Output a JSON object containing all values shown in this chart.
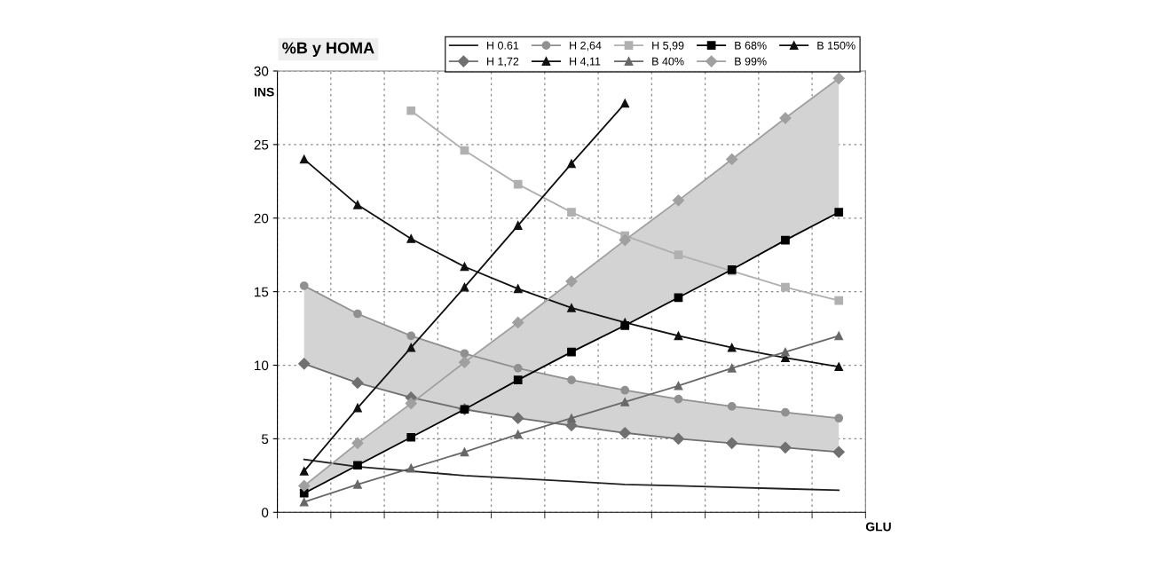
{
  "chart_data": {
    "type": "line",
    "title": "%B y HOMA",
    "ylabel": "INS",
    "xlabel": "GLU",
    "categories": [
      null,
      null,
      null,
      null,
      null,
      null,
      null,
      null,
      null,
      null,
      null
    ],
    "ylim": [
      0,
      30
    ],
    "yticks": [
      0,
      5,
      10,
      15,
      20,
      25,
      30
    ],
    "grid": true,
    "legend": "top right",
    "line_style": "solid",
    "series": [
      {
        "name": "H 0.61",
        "color": "#202020",
        "marker": "none",
        "values": [
          3.6,
          3.1,
          2.8,
          2.5,
          2.3,
          2.1,
          1.9,
          1.8,
          1.7,
          1.6,
          1.5
        ]
      },
      {
        "name": "H 1,72",
        "color": "#707070",
        "marker": "diamond",
        "values": [
          10.1,
          8.8,
          7.8,
          7.0,
          6.4,
          5.9,
          5.4,
          5.0,
          4.7,
          4.4,
          4.1
        ]
      },
      {
        "name": "H 2,64",
        "color": "#909090",
        "marker": "circle",
        "values": [
          15.4,
          13.5,
          12.0,
          10.8,
          9.8,
          9.0,
          8.3,
          7.7,
          7.2,
          6.8,
          6.4
        ],
        "lower": [
          10.1,
          8.8,
          7.8,
          7.0,
          6.4,
          5.9,
          5.4,
          5.0,
          4.7,
          4.4,
          4.1
        ],
        "upper": [
          15.4,
          13.5,
          12.0,
          10.8,
          9.8,
          9.0,
          8.3,
          7.7,
          7.2,
          6.8,
          6.4
        ]
      },
      {
        "name": "H 4,11",
        "color": "#101010",
        "marker": "triangle",
        "values": [
          24.0,
          20.9,
          18.6,
          16.7,
          15.2,
          13.9,
          12.9,
          12.0,
          11.2,
          10.5,
          9.9
        ]
      },
      {
        "name": "H 5,99",
        "color": "#b0b0b0",
        "marker": "square",
        "values": [
          null,
          null,
          27.3,
          24.6,
          22.3,
          20.4,
          18.8,
          17.5,
          16.4,
          15.3,
          14.4
        ]
      },
      {
        "name": "B 40%",
        "color": "#686868",
        "marker": "triangle",
        "values": [
          0.7,
          1.9,
          3.0,
          4.1,
          5.3,
          6.4,
          7.5,
          8.6,
          9.8,
          10.9,
          12.0
        ]
      },
      {
        "name": "B 68%",
        "color": "#000000",
        "marker": "square",
        "values": [
          1.3,
          3.2,
          5.1,
          7.0,
          9.0,
          10.9,
          12.7,
          14.6,
          16.5,
          18.5,
          20.4
        ]
      },
      {
        "name": "B 99%",
        "color": "#a0a0a0",
        "marker": "diamond",
        "values": [
          1.8,
          4.7,
          7.4,
          10.2,
          12.9,
          15.7,
          18.5,
          21.2,
          24.0,
          26.8,
          29.5
        ],
        "lower": [
          1.3,
          3.2,
          5.1,
          7.0,
          9.0,
          10.9,
          12.7,
          14.6,
          16.5,
          18.5,
          20.4
        ],
        "upper": [
          1.8,
          4.7,
          7.4,
          10.2,
          12.9,
          15.7,
          18.5,
          21.2,
          24.0,
          26.8,
          29.5
        ]
      },
      {
        "name": "B 150%",
        "color": "#101010",
        "marker": "triangle",
        "values": [
          2.8,
          7.1,
          11.2,
          15.3,
          19.5,
          23.7,
          27.8,
          null,
          null,
          null,
          null
        ]
      }
    ]
  }
}
